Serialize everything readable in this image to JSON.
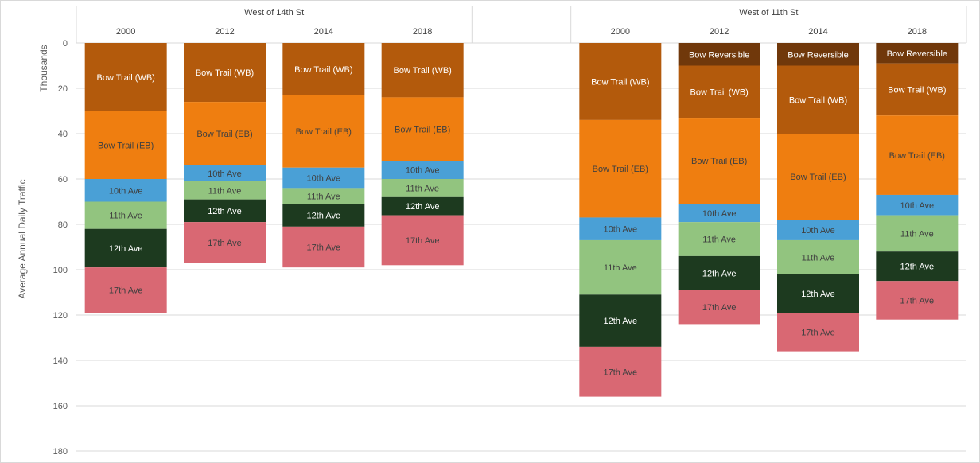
{
  "chart_data": {
    "type": "bar",
    "stacked": true,
    "reversed_y": true,
    "ylabel": "Average Annual Daily Traffic",
    "yunit_label": "Thousands",
    "ylim": [
      0,
      180
    ],
    "yticks": [
      0,
      20,
      40,
      60,
      80,
      100,
      120,
      140,
      160,
      180
    ],
    "grid": true,
    "groups": [
      {
        "name": "West of 14th St",
        "bars": [
          {
            "year": "2000",
            "segments": [
              {
                "series": "Bow Trail (WB)",
                "value": 30
              },
              {
                "series": "Bow Trail (EB)",
                "value": 30
              },
              {
                "series": "10th Ave",
                "value": 10
              },
              {
                "series": "11th Ave",
                "value": 12
              },
              {
                "series": "12th Ave",
                "value": 17
              },
              {
                "series": "17th Ave",
                "value": 20
              }
            ]
          },
          {
            "year": "2012",
            "segments": [
              {
                "series": "Bow Trail (WB)",
                "value": 26
              },
              {
                "series": "Bow Trail (EB)",
                "value": 28
              },
              {
                "series": "10th Ave",
                "value": 7
              },
              {
                "series": "11th Ave",
                "value": 8
              },
              {
                "series": "12th Ave",
                "value": 10
              },
              {
                "series": "17th Ave",
                "value": 18
              }
            ]
          },
          {
            "year": "2014",
            "segments": [
              {
                "series": "Bow Trail (WB)",
                "value": 23
              },
              {
                "series": "Bow Trail (EB)",
                "value": 32
              },
              {
                "series": "10th Ave",
                "value": 9
              },
              {
                "series": "11th Ave",
                "value": 7
              },
              {
                "series": "12th Ave",
                "value": 10
              },
              {
                "series": "17th Ave",
                "value": 18
              }
            ]
          },
          {
            "year": "2018",
            "segments": [
              {
                "series": "Bow Trail (WB)",
                "value": 24
              },
              {
                "series": "Bow Trail (EB)",
                "value": 28
              },
              {
                "series": "10th Ave",
                "value": 8
              },
              {
                "series": "11th Ave",
                "value": 8
              },
              {
                "series": "12th Ave",
                "value": 8
              },
              {
                "series": "17th Ave",
                "value": 22
              }
            ]
          }
        ]
      },
      {
        "name": "West of 11th St",
        "bars": [
          {
            "year": "2000",
            "segments": [
              {
                "series": "Bow Trail (WB)",
                "value": 34
              },
              {
                "series": "Bow Trail (EB)",
                "value": 43
              },
              {
                "series": "10th Ave",
                "value": 10
              },
              {
                "series": "11th Ave",
                "value": 24
              },
              {
                "series": "12th Ave",
                "value": 23
              },
              {
                "series": "17th Ave",
                "value": 22
              }
            ]
          },
          {
            "year": "2012",
            "segments": [
              {
                "series": "Bow Reversible",
                "value": 10
              },
              {
                "series": "Bow Trail (WB)",
                "value": 23
              },
              {
                "series": "Bow Trail (EB)",
                "value": 38
              },
              {
                "series": "10th Ave",
                "value": 8
              },
              {
                "series": "11th Ave",
                "value": 15
              },
              {
                "series": "12th Ave",
                "value": 15
              },
              {
                "series": "17th Ave",
                "value": 15
              }
            ]
          },
          {
            "year": "2014",
            "segments": [
              {
                "series": "Bow Reversible",
                "value": 10
              },
              {
                "series": "Bow Trail (WB)",
                "value": 30
              },
              {
                "series": "Bow Trail (EB)",
                "value": 38
              },
              {
                "series": "10th Ave",
                "value": 9
              },
              {
                "series": "11th Ave",
                "value": 15
              },
              {
                "series": "12th Ave",
                "value": 17
              },
              {
                "series": "17th Ave",
                "value": 17
              }
            ]
          },
          {
            "year": "2018",
            "segments": [
              {
                "series": "Bow Reversible",
                "value": 9
              },
              {
                "series": "Bow Trail (WB)",
                "value": 23
              },
              {
                "series": "Bow Trail (EB)",
                "value": 35
              },
              {
                "series": "10th Ave",
                "value": 9
              },
              {
                "series": "11th Ave",
                "value": 16
              },
              {
                "series": "12th Ave",
                "value": 13
              },
              {
                "series": "17th Ave",
                "value": 17
              }
            ]
          }
        ]
      }
    ],
    "series_styles": {
      "Bow Reversible": {
        "color": "#70380b",
        "text_color": "#ffffff"
      },
      "Bow Trail (WB)": {
        "color": "#b35a0c",
        "text_color": "#ffffff"
      },
      "Bow Trail (EB)": {
        "color": "#ef7e10",
        "text_color": "#404040"
      },
      "10th Ave": {
        "color": "#4aa0d6",
        "text_color": "#404040"
      },
      "11th Ave": {
        "color": "#92c47f",
        "text_color": "#404040"
      },
      "12th Ave": {
        "color": "#1d3a1f",
        "text_color": "#ffffff"
      },
      "17th Ave": {
        "color": "#d96873",
        "text_color": "#404040"
      }
    }
  }
}
